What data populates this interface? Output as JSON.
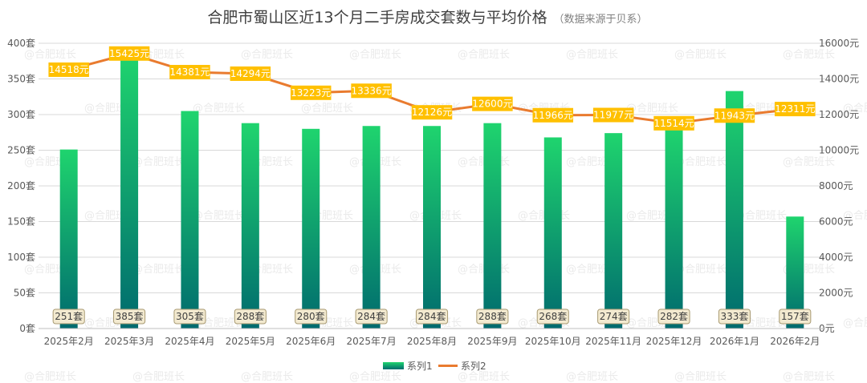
{
  "chart_data": {
    "type": "bar+line",
    "title": "合肥市蜀山区近13个月二手房成交套数与平均价格",
    "subtitle": "（数据来源于贝系）",
    "categories": [
      "2025年2月",
      "2025年3月",
      "2025年4月",
      "2025年5月",
      "2025年6月",
      "2025年7月",
      "2025年8月",
      "2025年9月",
      "2025年10月",
      "2025年11月",
      "2025年12月",
      "2026年1月",
      "2026年2月"
    ],
    "series": [
      {
        "name": "系列1",
        "type": "bar",
        "axis": "left",
        "values": [
          251,
          385,
          305,
          288,
          280,
          284,
          284,
          288,
          268,
          274,
          282,
          333,
          157
        ],
        "labels": [
          "251套",
          "385套",
          "305套",
          "288套",
          "280套",
          "284套",
          "284套",
          "288套",
          "268套",
          "274套",
          "282套",
          "333套",
          "157套"
        ]
      },
      {
        "name": "系列2",
        "type": "line",
        "axis": "right",
        "values": [
          14518,
          15425,
          14381,
          14294,
          13223,
          13336,
          12126,
          12600,
          11966,
          11977,
          11514,
          11943,
          12311
        ],
        "labels": [
          "14518元",
          "15425元",
          "14381元",
          "14294元",
          "13223元",
          "13336元",
          "12126元",
          "12600元",
          "11966元",
          "11977元",
          "11514元",
          "11943元",
          "12311元"
        ]
      }
    ],
    "y_left": {
      "min": 0,
      "max": 400,
      "step": 50,
      "tick_labels": [
        "0套",
        "50套",
        "100套",
        "150套",
        "200套",
        "250套",
        "300套",
        "350套",
        "400套"
      ]
    },
    "y_right": {
      "min": 0,
      "max": 16000,
      "step": 2000,
      "tick_labels": [
        "0元",
        "2000元",
        "4000元",
        "6000元",
        "8000元",
        "10000元",
        "12000元",
        "14000元",
        "16000元"
      ]
    },
    "legend": {
      "position": "bottom",
      "items": [
        "系列1",
        "系列2"
      ]
    },
    "watermark": "@合肥班长",
    "colors": {
      "bar_top": "#1fd46e",
      "bar_bottom": "#006a6e",
      "line": "#e97b2f",
      "line_label_bg": "#ffc000",
      "bar_label_bg": "#f3ead0",
      "bar_label_border": "#a89a72",
      "grid": "#d9d9d9"
    }
  }
}
